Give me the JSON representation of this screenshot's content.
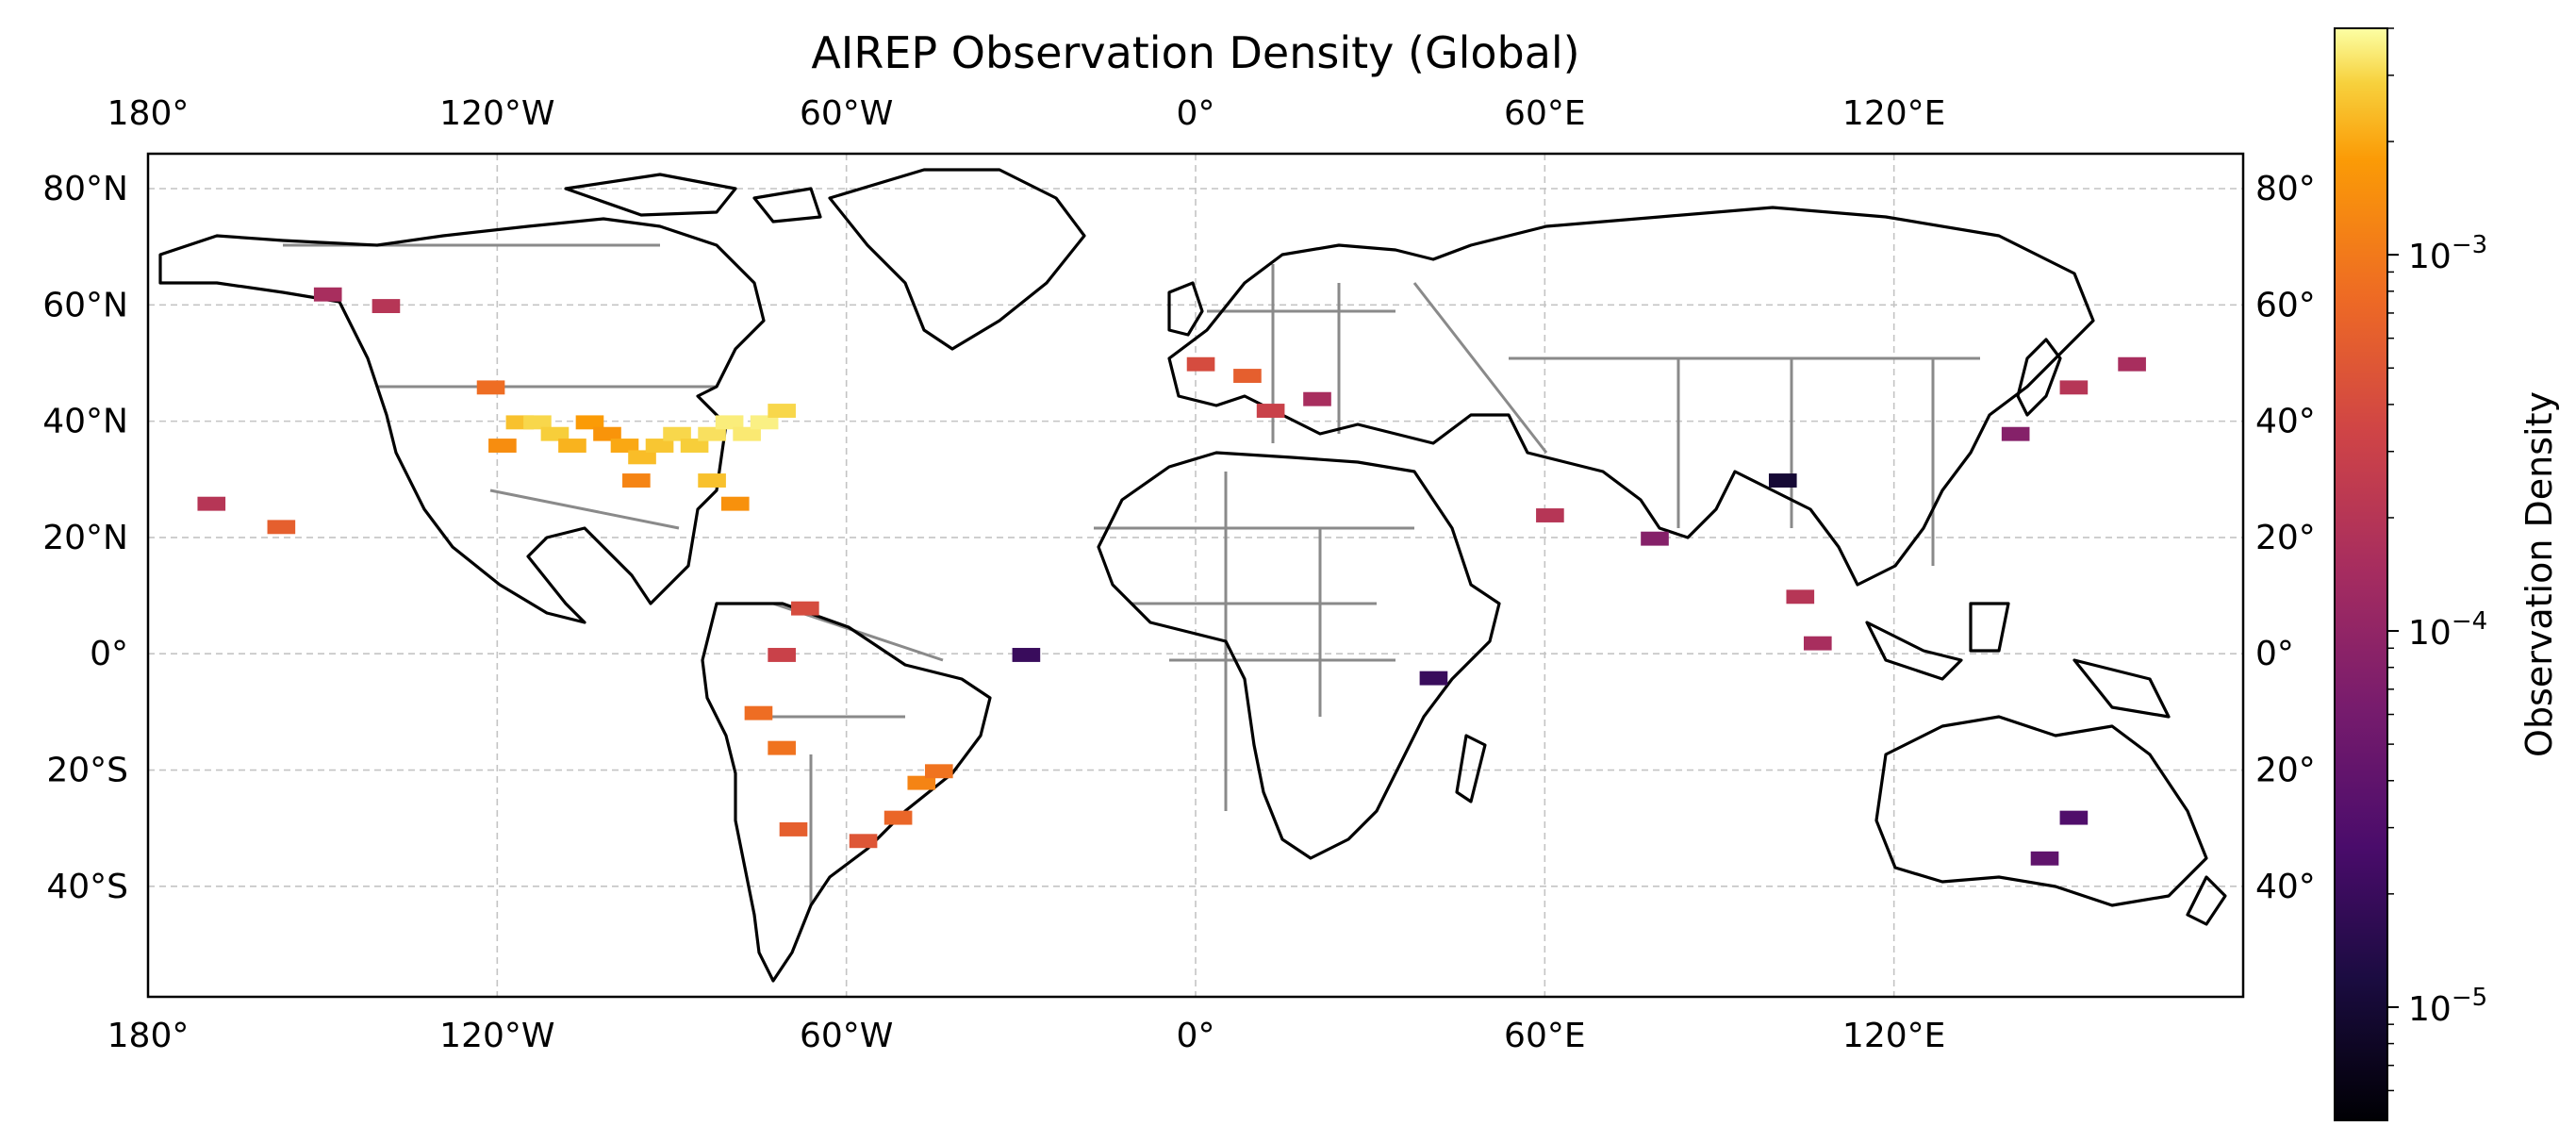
{
  "chart_data": {
    "type": "heatmap",
    "title": "AIREP Observation Density (Global)",
    "map": {
      "lon_range": [
        -180,
        180
      ],
      "lat_range": [
        -59,
        86
      ],
      "grid": true,
      "coastlines": true,
      "country_borders": true
    },
    "top_x_ticks": [
      {
        "value": -180,
        "label": "180°"
      },
      {
        "value": -120,
        "label": "120°W"
      },
      {
        "value": -60,
        "label": "60°W"
      },
      {
        "value": 0,
        "label": "0°"
      },
      {
        "value": 60,
        "label": "60°E"
      },
      {
        "value": 120,
        "label": "120°E"
      }
    ],
    "bottom_x_ticks": [
      {
        "value": -180,
        "label": "180°"
      },
      {
        "value": -120,
        "label": "120°W"
      },
      {
        "value": -60,
        "label": "60°W"
      },
      {
        "value": 0,
        "label": "0°"
      },
      {
        "value": 60,
        "label": "60°E"
      },
      {
        "value": 120,
        "label": "120°E"
      }
    ],
    "left_y_ticks": [
      {
        "value": 80,
        "label": "80°N"
      },
      {
        "value": 60,
        "label": "60°N"
      },
      {
        "value": 40,
        "label": "40°N"
      },
      {
        "value": 20,
        "label": "20°N"
      },
      {
        "value": 0,
        "label": "0°"
      },
      {
        "value": -20,
        "label": "20°S"
      },
      {
        "value": -40,
        "label": "40°S"
      }
    ],
    "right_y_ticks": [
      {
        "value": 80,
        "label": "80°"
      },
      {
        "value": 60,
        "label": "60°"
      },
      {
        "value": 40,
        "label": "40°"
      },
      {
        "value": 20,
        "label": "20°"
      },
      {
        "value": 0,
        "label": "0°"
      },
      {
        "value": -20,
        "label": "20°"
      },
      {
        "value": -40,
        "label": "40°"
      }
    ],
    "colorbar": {
      "label": "Observation Density",
      "scale": "log",
      "colormap": "inferno",
      "range": [
        5e-06,
        0.004
      ],
      "ticks": [
        {
          "value": 0.001,
          "label": "10",
          "exp": "−3"
        },
        {
          "value": 0.0001,
          "label": "10",
          "exp": "−4"
        },
        {
          "value": 1e-05,
          "label": "10",
          "exp": "−5"
        }
      ]
    },
    "cells": [
      {
        "lon": -117,
        "lat": 40,
        "value": 0.0025
      },
      {
        "lon": -114,
        "lat": 40,
        "value": 0.003
      },
      {
        "lon": -111,
        "lat": 38,
        "value": 0.0028
      },
      {
        "lon": -108,
        "lat": 36,
        "value": 0.0022
      },
      {
        "lon": -105,
        "lat": 40,
        "value": 0.0018
      },
      {
        "lon": -102,
        "lat": 38,
        "value": 0.0016
      },
      {
        "lon": -99,
        "lat": 36,
        "value": 0.002
      },
      {
        "lon": -96,
        "lat": 34,
        "value": 0.0024
      },
      {
        "lon": -93,
        "lat": 36,
        "value": 0.0026
      },
      {
        "lon": -90,
        "lat": 38,
        "value": 0.003
      },
      {
        "lon": -87,
        "lat": 36,
        "value": 0.0028
      },
      {
        "lon": -84,
        "lat": 38,
        "value": 0.0032
      },
      {
        "lon": -81,
        "lat": 40,
        "value": 0.0035
      },
      {
        "lon": -78,
        "lat": 38,
        "value": 0.0034
      },
      {
        "lon": -75,
        "lat": 40,
        "value": 0.0036
      },
      {
        "lon": -72,
        "lat": 42,
        "value": 0.003
      },
      {
        "lon": -84,
        "lat": 30,
        "value": 0.0025
      },
      {
        "lon": -80,
        "lat": 26,
        "value": 0.0015
      },
      {
        "lon": -97,
        "lat": 30,
        "value": 0.0012
      },
      {
        "lon": -120,
        "lat": 36,
        "value": 0.0014
      },
      {
        "lon": -122,
        "lat": 46,
        "value": 0.0008
      },
      {
        "lon": -68,
        "lat": 8,
        "value": 0.0004
      },
      {
        "lon": -72,
        "lat": 0,
        "value": 0.0003
      },
      {
        "lon": -76,
        "lat": -10,
        "value": 0.0008
      },
      {
        "lon": -72,
        "lat": -16,
        "value": 0.0009
      },
      {
        "lon": -70,
        "lat": -30,
        "value": 0.0006
      },
      {
        "lon": -58,
        "lat": -32,
        "value": 0.0005
      },
      {
        "lon": -48,
        "lat": -22,
        "value": 0.0012
      },
      {
        "lon": -45,
        "lat": -20,
        "value": 0.0009
      },
      {
        "lon": -52,
        "lat": -28,
        "value": 0.0007
      },
      {
        "lon": -140,
        "lat": 60,
        "value": 0.0002
      },
      {
        "lon": -150,
        "lat": 62,
        "value": 0.00015
      },
      {
        "lon": -158,
        "lat": 22,
        "value": 0.0006
      },
      {
        "lon": -170,
        "lat": 26,
        "value": 0.0002
      },
      {
        "lon": 0,
        "lat": 50,
        "value": 0.0004
      },
      {
        "lon": 8,
        "lat": 48,
        "value": 0.0006
      },
      {
        "lon": 12,
        "lat": 42,
        "value": 0.0003
      },
      {
        "lon": 20,
        "lat": 44,
        "value": 0.00015
      },
      {
        "lon": 60,
        "lat": 24,
        "value": 0.0002
      },
      {
        "lon": 78,
        "lat": 20,
        "value": 8e-05
      },
      {
        "lon": 103,
        "lat": 10,
        "value": 0.0002
      },
      {
        "lon": 106,
        "lat": 2,
        "value": 0.00015
      },
      {
        "lon": 140,
        "lat": 38,
        "value": 8e-05
      },
      {
        "lon": 150,
        "lat": 46,
        "value": 0.0002
      },
      {
        "lon": 160,
        "lat": 50,
        "value": 0.00015
      },
      {
        "lon": 145,
        "lat": -35,
        "value": 4e-05
      },
      {
        "lon": 150,
        "lat": -28,
        "value": 3e-05
      },
      {
        "lon": 40,
        "lat": -4,
        "value": 2e-05
      },
      {
        "lon": -30,
        "lat": 0,
        "value": 2e-05
      },
      {
        "lon": 100,
        "lat": 30,
        "value": 1e-05
      }
    ]
  }
}
